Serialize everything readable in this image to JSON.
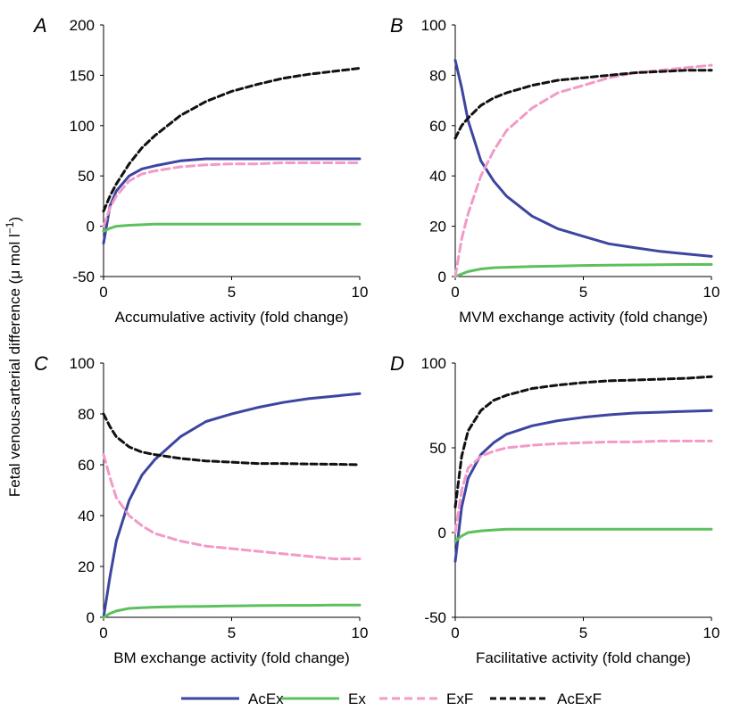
{
  "colors": {
    "AcEx": "#3d45a0",
    "Ex": "#5cc15c",
    "ExF": "#f29ac8",
    "AcExF": "#111111"
  },
  "y_axis_label": "Fetal venous-arterial difference (μ mol l",
  "y_axis_label_sup": "−1",
  "y_axis_label_end": ")",
  "legend": [
    {
      "name": "AcEx",
      "color": "#3d45a0",
      "dash": "solid"
    },
    {
      "name": "Ex",
      "color": "#5cc15c",
      "dash": "solid"
    },
    {
      "name": "ExF",
      "color": "#f29ac8",
      "dash": "dashed"
    },
    {
      "name": "AcExF",
      "color": "#111111",
      "dash": "dashed"
    }
  ],
  "chart_data": [
    {
      "panel": "A",
      "type": "line",
      "xlabel": "Accumulative activity (fold change)",
      "xlim": [
        0,
        10
      ],
      "ylim": [
        -50,
        200
      ],
      "xticks": [
        0,
        5,
        10
      ],
      "yticks": [
        -50,
        0,
        50,
        100,
        150,
        200
      ],
      "x": [
        0,
        0.25,
        0.5,
        1,
        1.5,
        2,
        3,
        4,
        5,
        6,
        7,
        8,
        9,
        10
      ],
      "series": [
        {
          "name": "AcEx",
          "values": [
            -17,
            20,
            35,
            50,
            57,
            60,
            65,
            67,
            67,
            67,
            67,
            67,
            67,
            67
          ]
        },
        {
          "name": "Ex",
          "values": [
            -5,
            -2,
            0,
            1,
            1.5,
            2,
            2,
            2,
            2,
            2,
            2,
            2,
            2,
            2
          ]
        },
        {
          "name": "ExF",
          "values": [
            0,
            18,
            30,
            45,
            52,
            55,
            59,
            61,
            62,
            62,
            63,
            63,
            63,
            63
          ]
        },
        {
          "name": "AcExF",
          "values": [
            15,
            30,
            42,
            62,
            78,
            90,
            110,
            124,
            134,
            141,
            147,
            151,
            154,
            157
          ]
        }
      ]
    },
    {
      "panel": "B",
      "type": "line",
      "xlabel": "MVM exchange activity (fold change)",
      "xlim": [
        0,
        10
      ],
      "ylim": [
        0,
        100
      ],
      "xticks": [
        0,
        5,
        10
      ],
      "yticks": [
        0,
        20,
        40,
        60,
        80,
        100
      ],
      "x": [
        0,
        0.25,
        0.5,
        1,
        1.5,
        2,
        3,
        4,
        5,
        6,
        7,
        8,
        9,
        10
      ],
      "series": [
        {
          "name": "AcEx",
          "values": [
            86,
            75,
            62,
            46,
            38,
            32,
            24,
            19,
            16,
            13,
            11.5,
            10,
            9,
            8
          ]
        },
        {
          "name": "Ex",
          "values": [
            0,
            1,
            2,
            3,
            3.5,
            3.7,
            4,
            4.2,
            4.4,
            4.5,
            4.6,
            4.7,
            4.8,
            4.8
          ]
        },
        {
          "name": "ExF",
          "values": [
            0,
            15,
            25,
            40,
            50,
            58,
            67,
            73,
            76,
            79,
            81,
            82,
            83,
            84
          ]
        },
        {
          "name": "AcExF",
          "values": [
            55,
            60,
            63,
            68,
            71,
            73,
            76,
            78,
            79,
            80,
            81,
            81.5,
            82,
            82
          ]
        }
      ]
    },
    {
      "panel": "C",
      "type": "line",
      "xlabel": "BM exchange activity (fold change)",
      "xlim": [
        0,
        10
      ],
      "ylim": [
        0,
        100
      ],
      "xticks": [
        0,
        5,
        10
      ],
      "yticks": [
        0,
        20,
        40,
        60,
        80,
        100
      ],
      "x": [
        0,
        0.25,
        0.5,
        1,
        1.5,
        2,
        3,
        4,
        5,
        6,
        7,
        8,
        9,
        10
      ],
      "series": [
        {
          "name": "AcEx",
          "values": [
            0,
            16,
            30,
            46,
            56,
            62,
            71,
            77,
            80,
            82.5,
            84.5,
            86,
            87,
            88
          ]
        },
        {
          "name": "Ex",
          "values": [
            0,
            1.5,
            2.5,
            3.5,
            3.8,
            4,
            4.2,
            4.3,
            4.5,
            4.6,
            4.7,
            4.7,
            4.8,
            4.8
          ]
        },
        {
          "name": "ExF",
          "values": [
            64,
            55,
            47,
            40,
            36,
            33,
            30,
            28,
            27,
            26,
            25,
            24,
            23,
            23
          ]
        },
        {
          "name": "AcExF",
          "values": [
            80,
            75,
            71,
            67,
            65,
            64,
            62.5,
            61.5,
            61,
            60.5,
            60.5,
            60.3,
            60.2,
            60
          ]
        }
      ]
    },
    {
      "panel": "D",
      "type": "line",
      "xlabel": "Facilitative activity (fold change)",
      "xlim": [
        0,
        10
      ],
      "ylim": [
        -50,
        100
      ],
      "xticks": [
        0,
        5,
        10
      ],
      "yticks": [
        -50,
        0,
        50,
        100
      ],
      "x": [
        0,
        0.25,
        0.5,
        1,
        1.5,
        2,
        3,
        4,
        5,
        6,
        7,
        8,
        9,
        10
      ],
      "series": [
        {
          "name": "AcEx",
          "values": [
            -17,
            15,
            32,
            46,
            53,
            58,
            63,
            66,
            68,
            69.5,
            70.5,
            71,
            71.5,
            72
          ]
        },
        {
          "name": "Ex",
          "values": [
            -5,
            -2,
            0,
            1,
            1.5,
            2,
            2,
            2,
            2,
            2,
            2,
            2,
            2,
            2
          ]
        },
        {
          "name": "ExF",
          "values": [
            0,
            25,
            38,
            45,
            48,
            50,
            51.5,
            52.5,
            53,
            53.5,
            53.5,
            54,
            54,
            54
          ]
        },
        {
          "name": "AcExF",
          "values": [
            15,
            45,
            60,
            72,
            78,
            81,
            85,
            87,
            88.5,
            89.5,
            90,
            90.5,
            91,
            92
          ]
        }
      ]
    }
  ]
}
